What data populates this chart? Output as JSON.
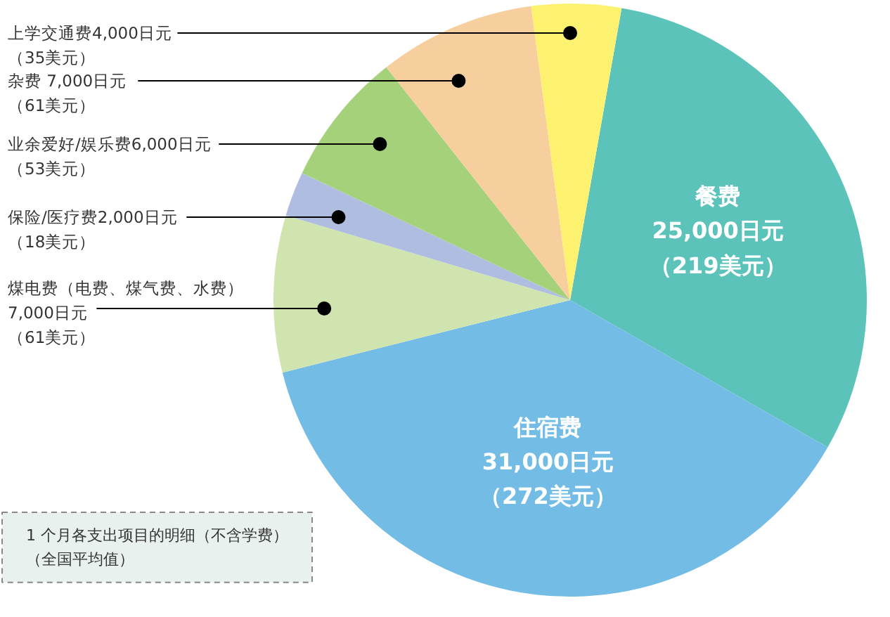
{
  "chart_data": {
    "type": "pie",
    "categories": [
      "餐费",
      "住宿费",
      "煤电费（电费、煤气费、水费）",
      "保险/医疗费",
      "业余爱好/娱乐费",
      "杂费",
      "上学交通费"
    ],
    "values": [
      25000,
      31000,
      7000,
      2000,
      6000,
      7000,
      4000
    ],
    "colors": [
      "#5cc3bb",
      "#72bce6",
      "#d0e4b0",
      "#afbde0",
      "#a5d17a",
      "#f7cf9f",
      "#fdf170"
    ],
    "value_labels": [
      "25,000日元（219美元）",
      "31,000日元（272美元）",
      "7,000日元（61美元）",
      "2,000日元（18美元）",
      "6,000日元（53美元）",
      " 7,000日元（61美元）",
      "4,000日元（35美元）"
    ],
    "annotations": [
      "1 个月各支出项目的明细（不含学费）（全国平均值）"
    ]
  }
}
